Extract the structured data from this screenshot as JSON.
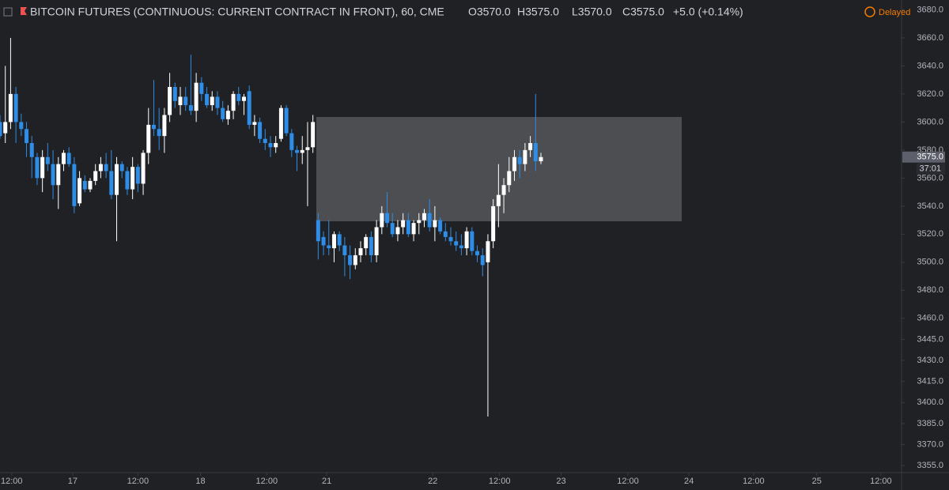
{
  "header": {
    "title": "BITCOIN FUTURES (CONTINUOUS: CURRENT CONTRACT IN FRONT), 60, CME",
    "open": "O3570.0",
    "high": "H3575.0",
    "low": "L3570.0",
    "close": "C3575.0",
    "change": "+5.0 (+0.14%)",
    "status": "Delayed"
  },
  "chart_data": {
    "type": "candlestick",
    "up_color": "#ffffff",
    "down_color": "#2e8de6",
    "last_price": {
      "value": 3575,
      "label": "3575.0"
    },
    "countdown": "37:01",
    "ylim": [
      3350,
      3687
    ],
    "yticks": [
      {
        "value": 3680,
        "label": "3680.0"
      },
      {
        "value": 3660,
        "label": "3660.0"
      },
      {
        "value": 3640,
        "label": "3640.0"
      },
      {
        "value": 3620,
        "label": "3620.0"
      },
      {
        "value": 3600,
        "label": "3600.0"
      },
      {
        "value": 3580,
        "label": "3580.0"
      },
      {
        "value": 3560,
        "label": "3560.0"
      },
      {
        "value": 3540,
        "label": "3540.0"
      },
      {
        "value": 3520,
        "label": "3520.0"
      },
      {
        "value": 3500,
        "label": "3500.0"
      },
      {
        "value": 3480,
        "label": "3480.0"
      },
      {
        "value": 3460,
        "label": "3460.0"
      },
      {
        "value": 3445,
        "label": "3445.0"
      },
      {
        "value": 3430,
        "label": "3430.0"
      },
      {
        "value": 3415,
        "label": "3415.0"
      },
      {
        "value": 3400,
        "label": "3400.0"
      },
      {
        "value": 3385,
        "label": "3385.0"
      },
      {
        "value": 3370,
        "label": "3370.0"
      },
      {
        "value": 3355,
        "label": "3355.0"
      }
    ],
    "xlim": [
      0,
      170
    ],
    "xticks": [
      {
        "value": 2.2,
        "label": "12:00"
      },
      {
        "value": 13.7,
        "label": "17"
      },
      {
        "value": 26,
        "label": "12:00"
      },
      {
        "value": 37.8,
        "label": "18"
      },
      {
        "value": 50.3,
        "label": "12:00"
      },
      {
        "value": 61.6,
        "label": "21"
      },
      {
        "value": 81.6,
        "label": "22"
      },
      {
        "value": 94.2,
        "label": "12:00"
      },
      {
        "value": 105.8,
        "label": "23"
      },
      {
        "value": 118.4,
        "label": "12:00"
      },
      {
        "value": 129.9,
        "label": "24"
      },
      {
        "value": 142.1,
        "label": "12:00"
      },
      {
        "value": 154,
        "label": "25"
      },
      {
        "value": 166.1,
        "label": "12:00"
      }
    ],
    "x": [
      0,
      1,
      2,
      3,
      4,
      5,
      6,
      7,
      8,
      9,
      10,
      11,
      12,
      13,
      14,
      15,
      16,
      17,
      18,
      19,
      20,
      21,
      22,
      23,
      24,
      25,
      26,
      27,
      28,
      29,
      30,
      31,
      32,
      33,
      34,
      35,
      36,
      37,
      38,
      39,
      40,
      41,
      42,
      43,
      44,
      45,
      46,
      47,
      48,
      49,
      50,
      51,
      52,
      53,
      54,
      55,
      56,
      57,
      58,
      59,
      60,
      61,
      62,
      63,
      64,
      65,
      66,
      67,
      68,
      69,
      70,
      71,
      72,
      73,
      74,
      75,
      76,
      77,
      78,
      79,
      80,
      81,
      82,
      83,
      84,
      85,
      86,
      87,
      88,
      89,
      90,
      91,
      92,
      93,
      94,
      95,
      96,
      97,
      98,
      99,
      100,
      101,
      102
    ],
    "open": [
      3600,
      3592,
      3600,
      3620,
      3600,
      3595,
      3585,
      3575,
      3560,
      3575,
      3570,
      3555,
      3570,
      3578,
      3570,
      3542,
      3558,
      3552,
      3558,
      3565,
      3570,
      3565,
      3548,
      3570,
      3565,
      3552,
      3568,
      3556,
      3578,
      3598,
      3595,
      3590,
      3605,
      3625,
      3612,
      3618,
      3612,
      3608,
      3628,
      3620,
      3612,
      3618,
      3610,
      3602,
      3608,
      3620,
      3615,
      3622,
      3598,
      3600,
      3588,
      3585,
      3582,
      3588,
      3610,
      3592,
      3580,
      3578,
      3580,
      3582,
      3530,
      3518,
      3512,
      3510,
      3520,
      3512,
      3505,
      3498,
      3505,
      3510,
      3518,
      3505,
      3525,
      3535,
      3528,
      3520,
      3525,
      3530,
      3520,
      3528,
      3530,
      3535,
      3525,
      3530,
      3522,
      3518,
      3515,
      3512,
      3510,
      3522,
      3508,
      3505,
      3500,
      3515,
      3540,
      3548,
      3555,
      3565,
      3575,
      3570,
      3580,
      3585,
      3572
    ],
    "high": [
      3605,
      3640,
      3660,
      3625,
      3606,
      3600,
      3590,
      3578,
      3580,
      3585,
      3580,
      3575,
      3580,
      3582,
      3575,
      3565,
      3562,
      3560,
      3570,
      3575,
      3578,
      3580,
      3575,
      3572,
      3568,
      3575,
      3570,
      3580,
      3610,
      3630,
      3610,
      3610,
      3635,
      3628,
      3625,
      3625,
      3648,
      3635,
      3632,
      3625,
      3622,
      3622,
      3615,
      3612,
      3622,
      3625,
      3620,
      3626,
      3605,
      3603,
      3595,
      3590,
      3590,
      3612,
      3612,
      3595,
      3583,
      3590,
      3600,
      3605,
      3535,
      3522,
      3530,
      3522,
      3522,
      3518,
      3512,
      3510,
      3515,
      3520,
      3522,
      3530,
      3540,
      3550,
      3535,
      3530,
      3535,
      3535,
      3530,
      3535,
      3538,
      3545,
      3540,
      3532,
      3528,
      3525,
      3522,
      3520,
      3525,
      3525,
      3512,
      3510,
      3520,
      3545,
      3570,
      3560,
      3575,
      3580,
      3580,
      3585,
      3590,
      3620,
      3578
    ],
    "low": [
      3588,
      3585,
      3595,
      3585,
      3590,
      3575,
      3560,
      3555,
      3550,
      3565,
      3545,
      3538,
      3565,
      3568,
      3535,
      3540,
      3550,
      3550,
      3555,
      3560,
      3560,
      3545,
      3515,
      3560,
      3548,
      3545,
      3550,
      3548,
      3570,
      3590,
      3580,
      3578,
      3600,
      3610,
      3605,
      3608,
      3605,
      3600,
      3615,
      3610,
      3608,
      3605,
      3600,
      3598,
      3602,
      3612,
      3605,
      3595,
      3590,
      3585,
      3580,
      3575,
      3578,
      3586,
      3590,
      3575,
      3565,
      3570,
      3540,
      3578,
      3502,
      3505,
      3505,
      3500,
      3508,
      3490,
      3488,
      3495,
      3500,
      3505,
      3500,
      3500,
      3520,
      3525,
      3518,
      3515,
      3520,
      3518,
      3515,
      3520,
      3525,
      3522,
      3515,
      3520,
      3515,
      3512,
      3508,
      3505,
      3505,
      3505,
      3500,
      3490,
      3390,
      3510,
      3525,
      3535,
      3550,
      3558,
      3560,
      3565,
      3575,
      3565,
      3570
    ],
    "close": [
      3590,
      3600,
      3620,
      3600,
      3595,
      3585,
      3575,
      3560,
      3575,
      3570,
      3555,
      3570,
      3578,
      3570,
      3540,
      3560,
      3552,
      3558,
      3565,
      3570,
      3565,
      3548,
      3570,
      3565,
      3552,
      3568,
      3556,
      3578,
      3598,
      3595,
      3590,
      3605,
      3625,
      3615,
      3618,
      3612,
      3608,
      3628,
      3620,
      3612,
      3618,
      3610,
      3602,
      3608,
      3620,
      3615,
      3618,
      3598,
      3600,
      3588,
      3585,
      3582,
      3585,
      3610,
      3592,
      3580,
      3578,
      3580,
      3582,
      3600,
      3515,
      3512,
      3510,
      3520,
      3512,
      3505,
      3498,
      3505,
      3510,
      3518,
      3505,
      3525,
      3535,
      3528,
      3520,
      3525,
      3530,
      3520,
      3528,
      3530,
      3535,
      3525,
      3530,
      3522,
      3518,
      3515,
      3512,
      3510,
      3522,
      3508,
      3505,
      3498,
      3515,
      3540,
      3548,
      3555,
      3565,
      3575,
      3570,
      3580,
      3585,
      3572,
      3575
    ]
  }
}
